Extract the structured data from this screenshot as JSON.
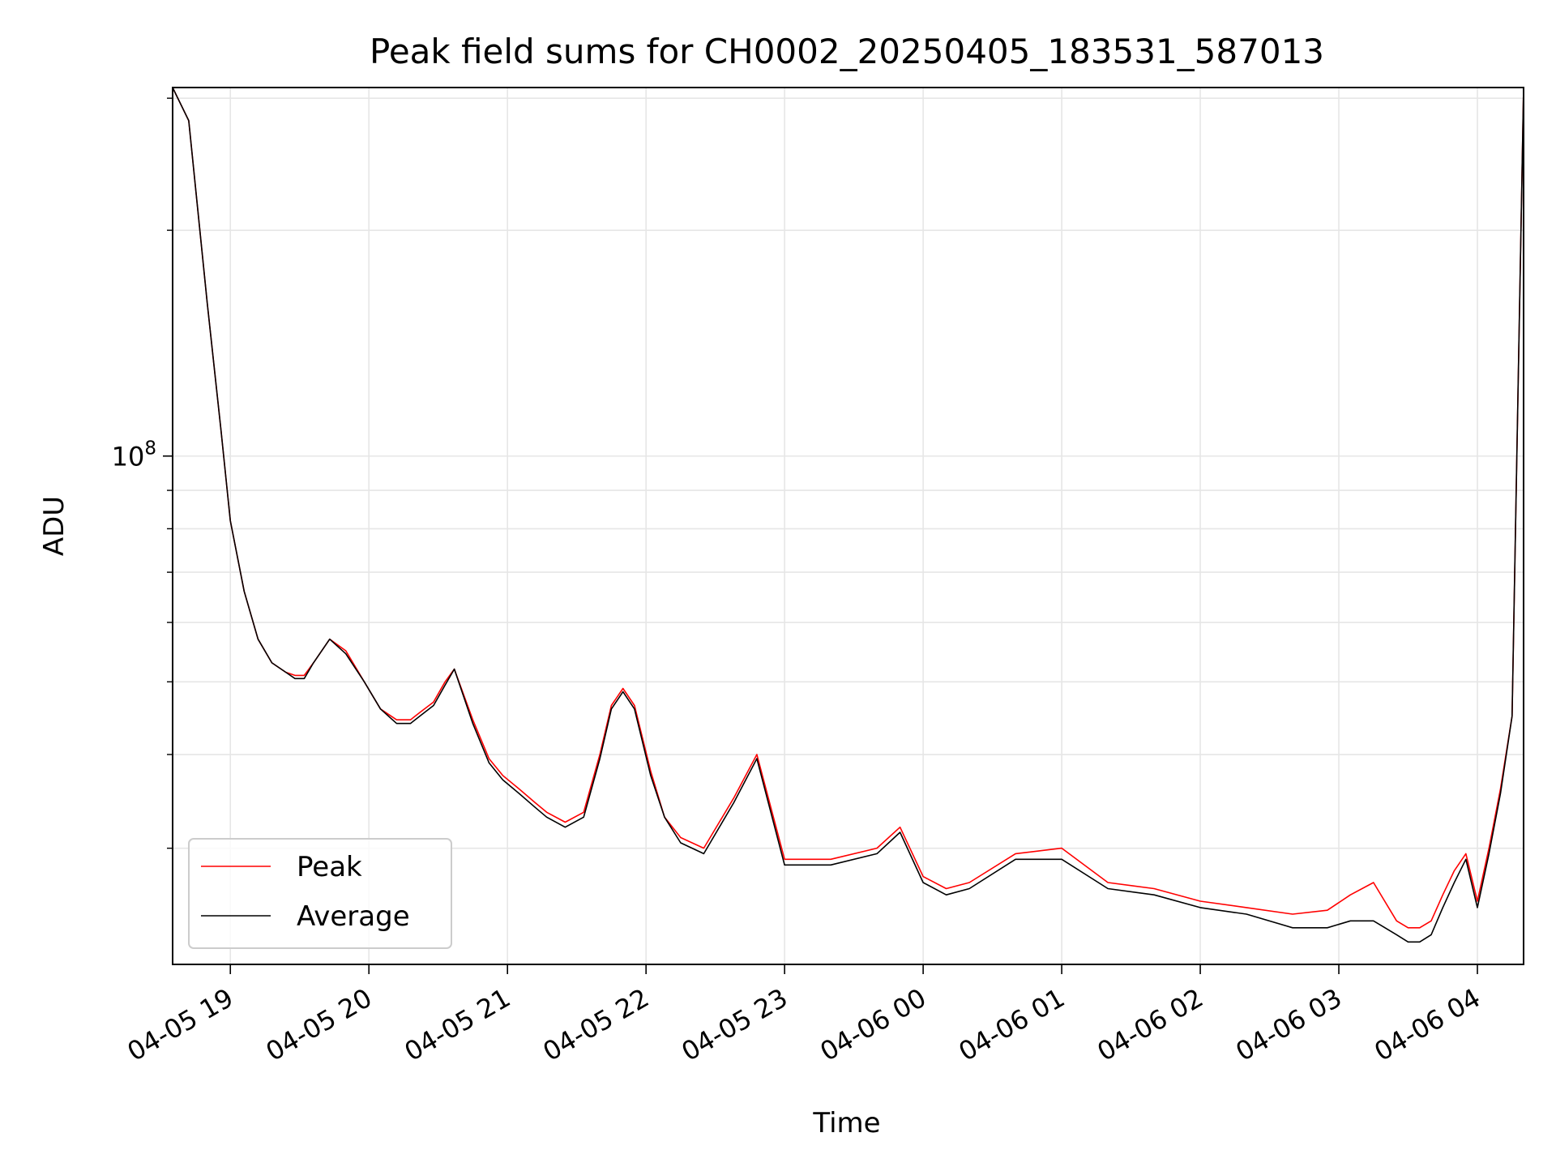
{
  "chart_data": {
    "type": "line",
    "title": "Peak field sums for CH0002_20250405_183531_587013",
    "xlabel": "Time",
    "ylabel": "ADU",
    "y_scale": "log",
    "grid": true,
    "legend_placement": "lower-left",
    "x_tick_labels": [
      "04-05 19",
      "04-05 20",
      "04-05 21",
      "04-05 22",
      "04-05 23",
      "04-06 00",
      "04-06 01",
      "04-06 02",
      "04-06 03",
      "04-06 04"
    ],
    "y_major_tick": {
      "base": "10",
      "exponent": "8",
      "value": 100000000
    },
    "xlim": [
      "2025-04-05 18:35",
      "2025-04-06 04:20"
    ],
    "ylim": [
      21000000,
      310000000
    ],
    "series": [
      {
        "name": "Peak",
        "color": "#ff0000",
        "x": [
          "2025-04-05 18:35",
          "2025-04-05 18:42",
          "2025-04-05 18:50",
          "2025-04-05 18:56",
          "2025-04-05 19:00",
          "2025-04-05 19:06",
          "2025-04-05 19:12",
          "2025-04-05 19:18",
          "2025-04-05 19:24",
          "2025-04-05 19:28",
          "2025-04-05 19:32",
          "2025-04-05 19:36",
          "2025-04-05 19:43",
          "2025-04-05 19:50",
          "2025-04-05 19:58",
          "2025-04-05 20:05",
          "2025-04-05 20:12",
          "2025-04-05 20:18",
          "2025-04-05 20:22",
          "2025-04-05 20:28",
          "2025-04-05 20:33",
          "2025-04-05 20:37",
          "2025-04-05 20:45",
          "2025-04-05 20:52",
          "2025-04-05 20:58",
          "2025-04-05 21:05",
          "2025-04-05 21:12",
          "2025-04-05 21:17",
          "2025-04-05 21:25",
          "2025-04-05 21:33",
          "2025-04-05 21:40",
          "2025-04-05 21:45",
          "2025-04-05 21:50",
          "2025-04-05 21:55",
          "2025-04-05 22:02",
          "2025-04-05 22:08",
          "2025-04-05 22:15",
          "2025-04-05 22:25",
          "2025-04-05 22:38",
          "2025-04-05 22:48",
          "2025-04-05 23:00",
          "2025-04-05 23:20",
          "2025-04-05 23:40",
          "2025-04-05 23:50",
          "2025-04-06 00:00",
          "2025-04-06 00:10",
          "2025-04-06 00:20",
          "2025-04-06 00:40",
          "2025-04-06 01:00",
          "2025-04-06 01:20",
          "2025-04-06 01:40",
          "2025-04-06 02:00",
          "2025-04-06 02:20",
          "2025-04-06 02:40",
          "2025-04-06 02:55",
          "2025-04-06 03:05",
          "2025-04-06 03:15",
          "2025-04-06 03:25",
          "2025-04-06 03:30",
          "2025-04-06 03:35",
          "2025-04-06 03:40",
          "2025-04-06 03:45",
          "2025-04-06 03:50",
          "2025-04-06 03:55",
          "2025-04-06 04:00",
          "2025-04-06 04:05",
          "2025-04-06 04:10",
          "2025-04-06 04:15",
          "2025-04-06 04:20"
        ],
        "y": [
          310000000,
          280000000,
          160000000,
          108000000,
          82000000,
          66000000,
          57000000,
          53000000,
          51500000,
          51000000,
          51000000,
          53000000,
          57000000,
          55000000,
          50000000,
          46000000,
          44500000,
          44500000,
          45500000,
          47000000,
          50000000,
          52000000,
          44500000,
          39500000,
          37500000,
          36000000,
          34500000,
          33500000,
          32500000,
          33500000,
          40000000,
          46500000,
          49000000,
          46500000,
          38000000,
          33000000,
          31000000,
          30000000,
          35000000,
          40000000,
          29000000,
          29000000,
          30000000,
          32000000,
          27500000,
          26500000,
          27000000,
          29500000,
          30000000,
          27000000,
          26500000,
          25500000,
          25000000,
          24500000,
          24800000,
          26000000,
          27000000,
          24000000,
          23500000,
          23500000,
          24000000,
          26000000,
          28000000,
          29500000,
          25500000,
          30000000,
          36000000,
          45000000,
          310000000
        ]
      },
      {
        "name": "Average",
        "color": "#000000",
        "x": [
          "2025-04-05 18:35",
          "2025-04-05 18:42",
          "2025-04-05 18:50",
          "2025-04-05 18:56",
          "2025-04-05 19:00",
          "2025-04-05 19:06",
          "2025-04-05 19:12",
          "2025-04-05 19:18",
          "2025-04-05 19:24",
          "2025-04-05 19:28",
          "2025-04-05 19:32",
          "2025-04-05 19:36",
          "2025-04-05 19:43",
          "2025-04-05 19:50",
          "2025-04-05 19:58",
          "2025-04-05 20:05",
          "2025-04-05 20:12",
          "2025-04-05 20:18",
          "2025-04-05 20:22",
          "2025-04-05 20:28",
          "2025-04-05 20:33",
          "2025-04-05 20:37",
          "2025-04-05 20:45",
          "2025-04-05 20:52",
          "2025-04-05 20:58",
          "2025-04-05 21:05",
          "2025-04-05 21:12",
          "2025-04-05 21:17",
          "2025-04-05 21:25",
          "2025-04-05 21:33",
          "2025-04-05 21:40",
          "2025-04-05 21:45",
          "2025-04-05 21:50",
          "2025-04-05 21:55",
          "2025-04-05 22:02",
          "2025-04-05 22:08",
          "2025-04-05 22:15",
          "2025-04-05 22:25",
          "2025-04-05 22:38",
          "2025-04-05 22:48",
          "2025-04-05 23:00",
          "2025-04-05 23:20",
          "2025-04-05 23:40",
          "2025-04-05 23:50",
          "2025-04-06 00:00",
          "2025-04-06 00:10",
          "2025-04-06 00:20",
          "2025-04-06 00:40",
          "2025-04-06 01:00",
          "2025-04-06 01:20",
          "2025-04-06 01:40",
          "2025-04-06 02:00",
          "2025-04-06 02:20",
          "2025-04-06 02:40",
          "2025-04-06 02:55",
          "2025-04-06 03:05",
          "2025-04-06 03:15",
          "2025-04-06 03:25",
          "2025-04-06 03:30",
          "2025-04-06 03:35",
          "2025-04-06 03:40",
          "2025-04-06 03:45",
          "2025-04-06 03:50",
          "2025-04-06 03:55",
          "2025-04-06 04:00",
          "2025-04-06 04:05",
          "2025-04-06 04:10",
          "2025-04-06 04:15",
          "2025-04-06 04:20"
        ],
        "y": [
          310000000,
          280000000,
          160000000,
          108000000,
          82000000,
          66000000,
          57000000,
          53000000,
          51500000,
          50500000,
          50500000,
          53000000,
          57000000,
          54500000,
          50000000,
          46000000,
          44000000,
          44000000,
          45000000,
          46500000,
          49500000,
          52000000,
          44000000,
          39000000,
          37000000,
          35500000,
          34000000,
          33000000,
          32000000,
          33000000,
          39500000,
          46000000,
          48500000,
          46000000,
          37500000,
          33000000,
          30500000,
          29500000,
          34500000,
          39500000,
          28500000,
          28500000,
          29500000,
          31500000,
          27000000,
          26000000,
          26500000,
          29000000,
          29000000,
          26500000,
          26000000,
          25000000,
          24500000,
          23500000,
          23500000,
          24000000,
          24000000,
          23000000,
          22500000,
          22500000,
          23000000,
          25000000,
          27000000,
          29000000,
          25000000,
          29500000,
          35500000,
          45000000,
          310000000
        ]
      }
    ]
  }
}
